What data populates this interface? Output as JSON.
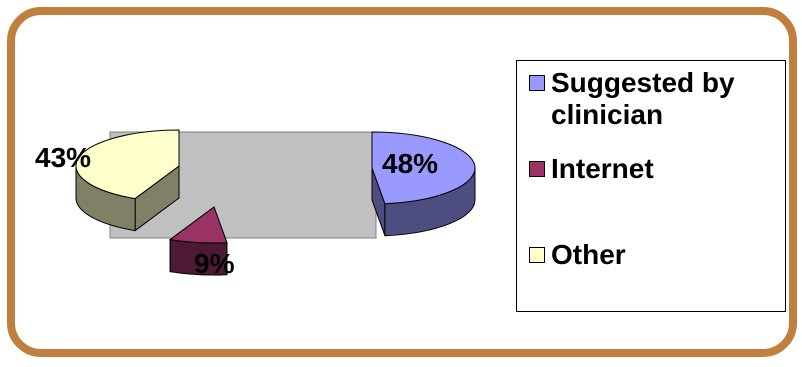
{
  "chart_data": {
    "type": "pie",
    "style": "3d-exploded",
    "categories": [
      "Suggested by clinician",
      "Internet",
      "Other"
    ],
    "values": [
      48,
      9,
      43
    ],
    "value_labels": [
      "48%",
      "9%",
      "43%"
    ],
    "colors": [
      "#9999ff",
      "#993366",
      "#ffffcc"
    ],
    "side_colors": [
      "#4d4d80",
      "#4d1a33",
      "#808066"
    ],
    "legend": {
      "position": "right"
    },
    "plot_background": "#c0c0c0"
  },
  "legend": {
    "items": [
      {
        "label": "Suggested by clinician",
        "color": "#9999ff"
      },
      {
        "label": "Internet",
        "color": "#993366"
      },
      {
        "label": "Other",
        "color": "#ffffcc"
      }
    ]
  },
  "colors": {
    "frame": "#c07f3e"
  }
}
